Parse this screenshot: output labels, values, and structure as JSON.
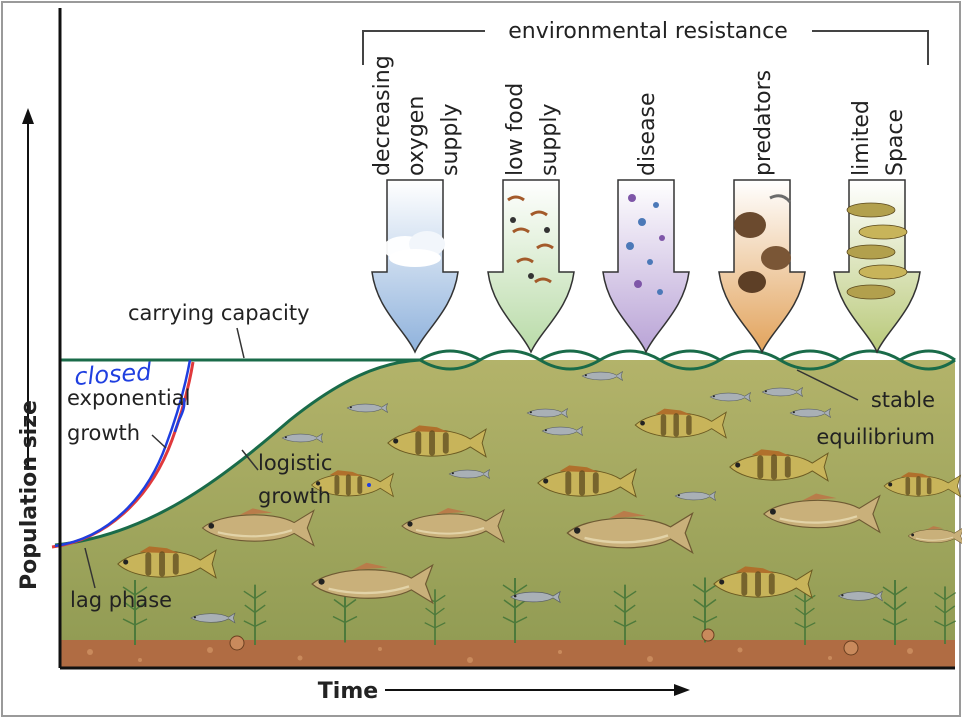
{
  "figure": {
    "axes": {
      "y_label": "Population size",
      "x_label": "Time"
    },
    "environmental_resistance": {
      "title": "environmental resistance",
      "factors": [
        {
          "label_lines": [
            "decreasing",
            "oxygen",
            "supply"
          ],
          "icon": "cloud-sky-icon",
          "color": "#8fb2dc"
        },
        {
          "label_lines": [
            "low food",
            "supply"
          ],
          "icon": "food-organisms-icon",
          "color": "#b9dba8"
        },
        {
          "label_lines": [
            "disease"
          ],
          "icon": "microbes-icon",
          "color": "#b9a3d6"
        },
        {
          "label_lines": [
            "predators"
          ],
          "icon": "predator-animals-icon",
          "color": "#e2a35c"
        },
        {
          "label_lines": [
            "limited",
            "Space"
          ],
          "icon": "crowded-fish-icon",
          "color": "#b9c979"
        }
      ]
    },
    "curve_labels": {
      "carrying_capacity": "carrying capacity",
      "exponential_growth": [
        "exponential",
        "growth"
      ],
      "logistic_growth": [
        "logistic",
        "growth"
      ],
      "stable_equilibrium": [
        "stable",
        "equilibrium"
      ],
      "lag_phase": "lag phase"
    },
    "handwritten_annotation": "closed",
    "colors": {
      "logistic_curve": "#1a6b49",
      "exponential_red": "#e0393c",
      "annotation_blue": "#1f3fe0",
      "pond_fill": "#a1a55d",
      "sediment": "#b06c43"
    }
  }
}
